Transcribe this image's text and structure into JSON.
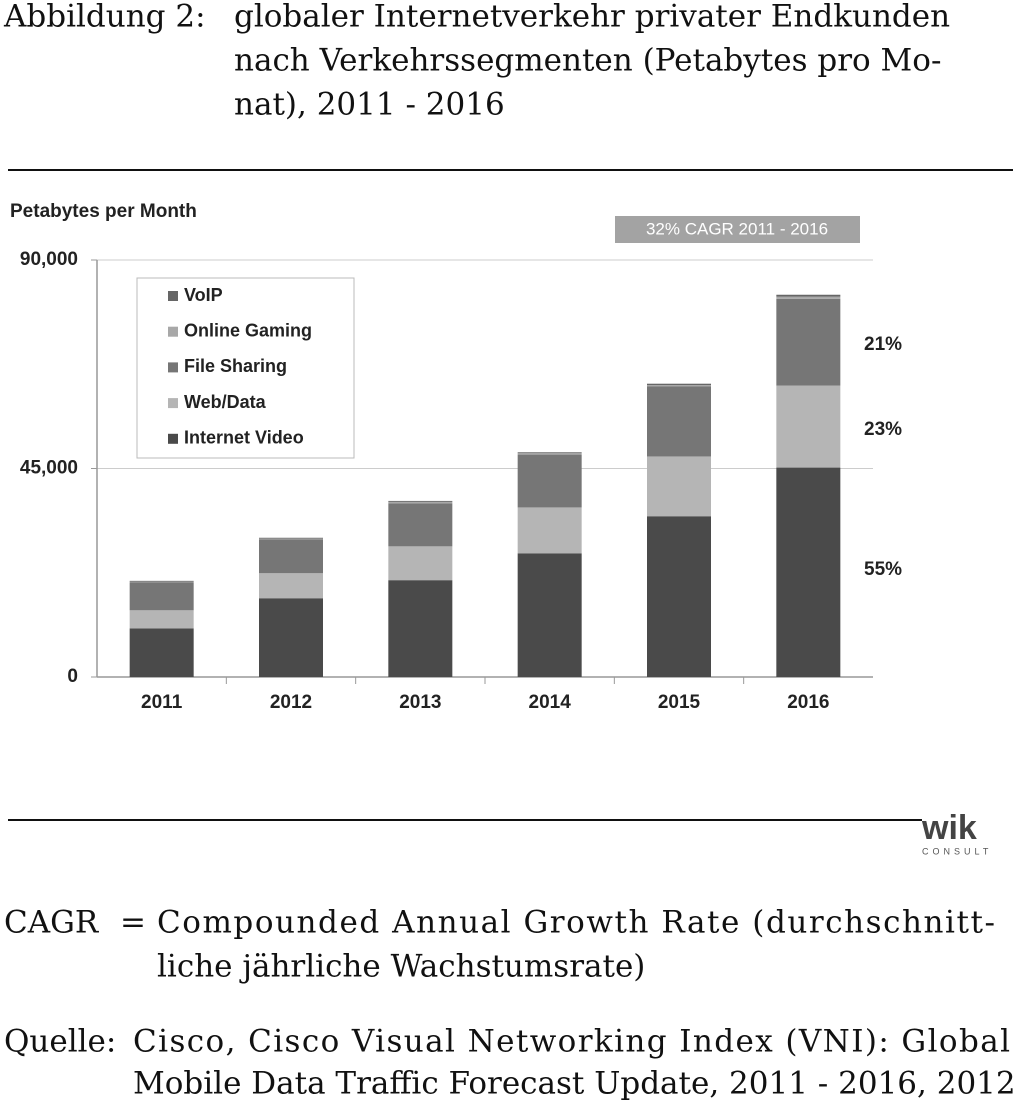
{
  "caption": {
    "label": "Abbildung 2:",
    "lines": [
      "globaler Internetverkehr privater Endkunden",
      "nach Verkehrssegmenten (Petabytes pro Mo-",
      "nat), 2011 - 2016"
    ]
  },
  "chart_data": {
    "type": "stacked_bar",
    "y_label": "Petabytes per Month",
    "badge": "32% CAGR 2011 - 2016",
    "categories": [
      "2011",
      "2012",
      "2013",
      "2014",
      "2015",
      "2016"
    ],
    "series": [
      {
        "name": "Internet Video",
        "color": "#4a4a4a",
        "values": [
          10500,
          17000,
          20900,
          26700,
          34700,
          45200
        ]
      },
      {
        "name": "Web/Data",
        "color": "#b5b5b5",
        "values": [
          3900,
          5400,
          7300,
          9900,
          12900,
          17700
        ]
      },
      {
        "name": "File Sharing",
        "color": "#767676",
        "values": [
          6000,
          7300,
          9300,
          11400,
          15100,
          18700
        ]
      },
      {
        "name": "Online Gaming",
        "color": "#a8a8a8",
        "values": [
          200,
          200,
          300,
          300,
          300,
          500
        ]
      },
      {
        "name": "VoIP",
        "color": "#666666",
        "values": [
          150,
          150,
          200,
          200,
          300,
          400
        ]
      }
    ],
    "ylim": [
      0,
      90000
    ],
    "yticks": [
      0,
      {
        "value": 45000,
        "label": "45,000"
      },
      {
        "value": 90000,
        "label": "90,000"
      }
    ],
    "grid": true,
    "legend": "upper left",
    "annotations": [
      "21%",
      "23%",
      "55%"
    ]
  },
  "logo": {
    "name": "wik",
    "sub": "CONSULT"
  },
  "notes": [
    {
      "term": "CAGR",
      "sep": "=",
      "lines": [
        "Compounded Annual Growth Rate (durchschnitt-",
        "liche jährliche Wachstumsrate)"
      ]
    },
    {
      "term": "Quelle:",
      "lines": [
        "Cisco, Cisco Visual Networking Index (VNI): Global",
        "Mobile Data Traffic Forecast Update, 2011 - 2016, 2012"
      ]
    }
  ]
}
